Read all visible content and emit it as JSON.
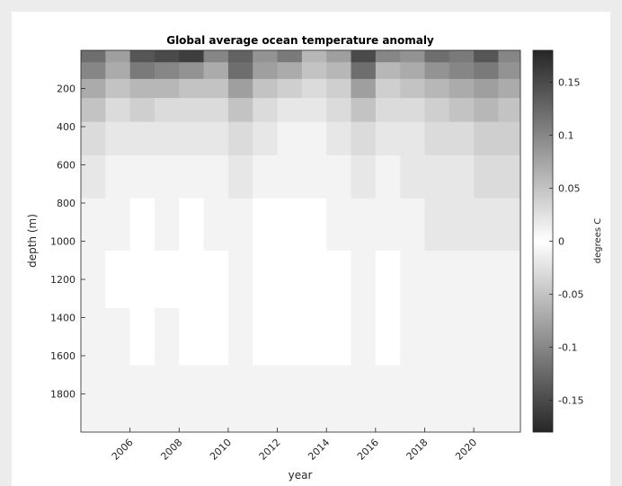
{
  "chart_data": {
    "type": "heatmap",
    "title": "Global average ocean temperature anomaly",
    "xlabel": "year",
    "ylabel": "depth (m)",
    "colorbar_label": "degrees C",
    "xlim": [
      2004.0,
      2021.9
    ],
    "ylim": [
      0,
      2000
    ],
    "y_reversed": true,
    "clim": [
      -0.18,
      0.18
    ],
    "x_ticks": [
      2006,
      2008,
      2010,
      2012,
      2014,
      2016,
      2018,
      2020
    ],
    "x_tick_labels": [
      "2006",
      "2008",
      "2010",
      "2012",
      "2014",
      "2016",
      "2018",
      "2020"
    ],
    "y_ticks": [
      200,
      400,
      600,
      800,
      1000,
      1200,
      1400,
      1600,
      1800
    ],
    "y_tick_labels": [
      "200",
      "400",
      "600",
      "800",
      "1000",
      "1200",
      "1400",
      "1600",
      "1800"
    ],
    "colorbar_ticks": [
      0.15,
      0.1,
      0.05,
      0,
      -0.05,
      -0.1,
      -0.15
    ],
    "colorbar_tick_labels": [
      "0.15",
      "0.1",
      "0.05",
      "0",
      "-0.05",
      "-0.1",
      "-0.15"
    ],
    "colormap": [
      "#262626",
      "#ffffff",
      "#262626"
    ],
    "grid": false,
    "colorbar_position": "right",
    "depths": [
      25,
      100,
      200,
      300,
      450,
      650,
      900,
      1200,
      1500,
      1800,
      1975
    ],
    "years": [
      2004.5,
      2005.5,
      2006.5,
      2007.5,
      2008.5,
      2009.5,
      2010.5,
      2011.5,
      2012.5,
      2013.5,
      2014.5,
      2015.5,
      2016.5,
      2017.5,
      2018.5,
      2019.5,
      2020.5,
      2021.5
    ],
    "z": [
      [
        0.12,
        0.08,
        0.14,
        0.15,
        0.16,
        0.1,
        0.13,
        0.09,
        0.11,
        0.06,
        0.08,
        0.15,
        0.1,
        0.09,
        0.12,
        0.11,
        0.14,
        0.1
      ],
      [
        0.1,
        0.07,
        0.11,
        0.1,
        0.09,
        0.07,
        0.12,
        0.08,
        0.07,
        0.05,
        0.06,
        0.12,
        0.06,
        0.07,
        0.09,
        0.1,
        0.11,
        0.09
      ],
      [
        0.07,
        0.05,
        0.06,
        0.06,
        0.05,
        0.05,
        0.08,
        0.05,
        0.04,
        0.03,
        0.04,
        0.08,
        0.04,
        0.05,
        0.06,
        0.07,
        0.08,
        0.07
      ],
      [
        0.05,
        0.03,
        0.04,
        0.03,
        0.03,
        0.03,
        0.05,
        0.03,
        0.02,
        0.02,
        0.03,
        0.05,
        0.03,
        0.03,
        0.04,
        0.05,
        0.06,
        0.05
      ],
      [
        0.03,
        0.02,
        0.02,
        0.02,
        0.02,
        0.02,
        0.03,
        0.02,
        0.01,
        0.01,
        0.02,
        0.03,
        0.02,
        0.02,
        0.03,
        0.03,
        0.04,
        0.04
      ],
      [
        0.02,
        0.01,
        0.01,
        0.01,
        0.01,
        0.01,
        0.02,
        0.01,
        0.01,
        0.01,
        0.01,
        0.02,
        0.01,
        0.02,
        0.02,
        0.02,
        0.03,
        0.03
      ],
      [
        0.01,
        0.01,
        0.0,
        0.01,
        0.0,
        0.01,
        0.01,
        0.0,
        0.0,
        0.0,
        0.01,
        0.01,
        0.01,
        0.01,
        0.02,
        0.02,
        0.02,
        0.02
      ],
      [
        0.01,
        0.0,
        0.0,
        0.0,
        0.0,
        0.0,
        0.01,
        0.0,
        0.0,
        0.0,
        0.0,
        0.01,
        0.0,
        0.01,
        0.01,
        0.01,
        0.01,
        0.01
      ],
      [
        0.01,
        0.01,
        0.0,
        0.01,
        0.0,
        0.0,
        0.01,
        0.0,
        0.0,
        0.0,
        0.0,
        0.01,
        0.0,
        0.01,
        0.01,
        0.01,
        0.01,
        0.01
      ],
      [
        0.01,
        0.01,
        0.01,
        0.01,
        0.01,
        0.01,
        0.01,
        0.01,
        0.01,
        0.01,
        0.01,
        0.01,
        0.01,
        0.01,
        0.01,
        0.01,
        0.01,
        0.01
      ],
      [
        0.01,
        0.01,
        0.01,
        0.01,
        0.01,
        0.01,
        0.01,
        0.01,
        0.01,
        0.01,
        0.01,
        0.01,
        0.01,
        0.01,
        0.01,
        0.01,
        0.01,
        0.01
      ]
    ]
  }
}
